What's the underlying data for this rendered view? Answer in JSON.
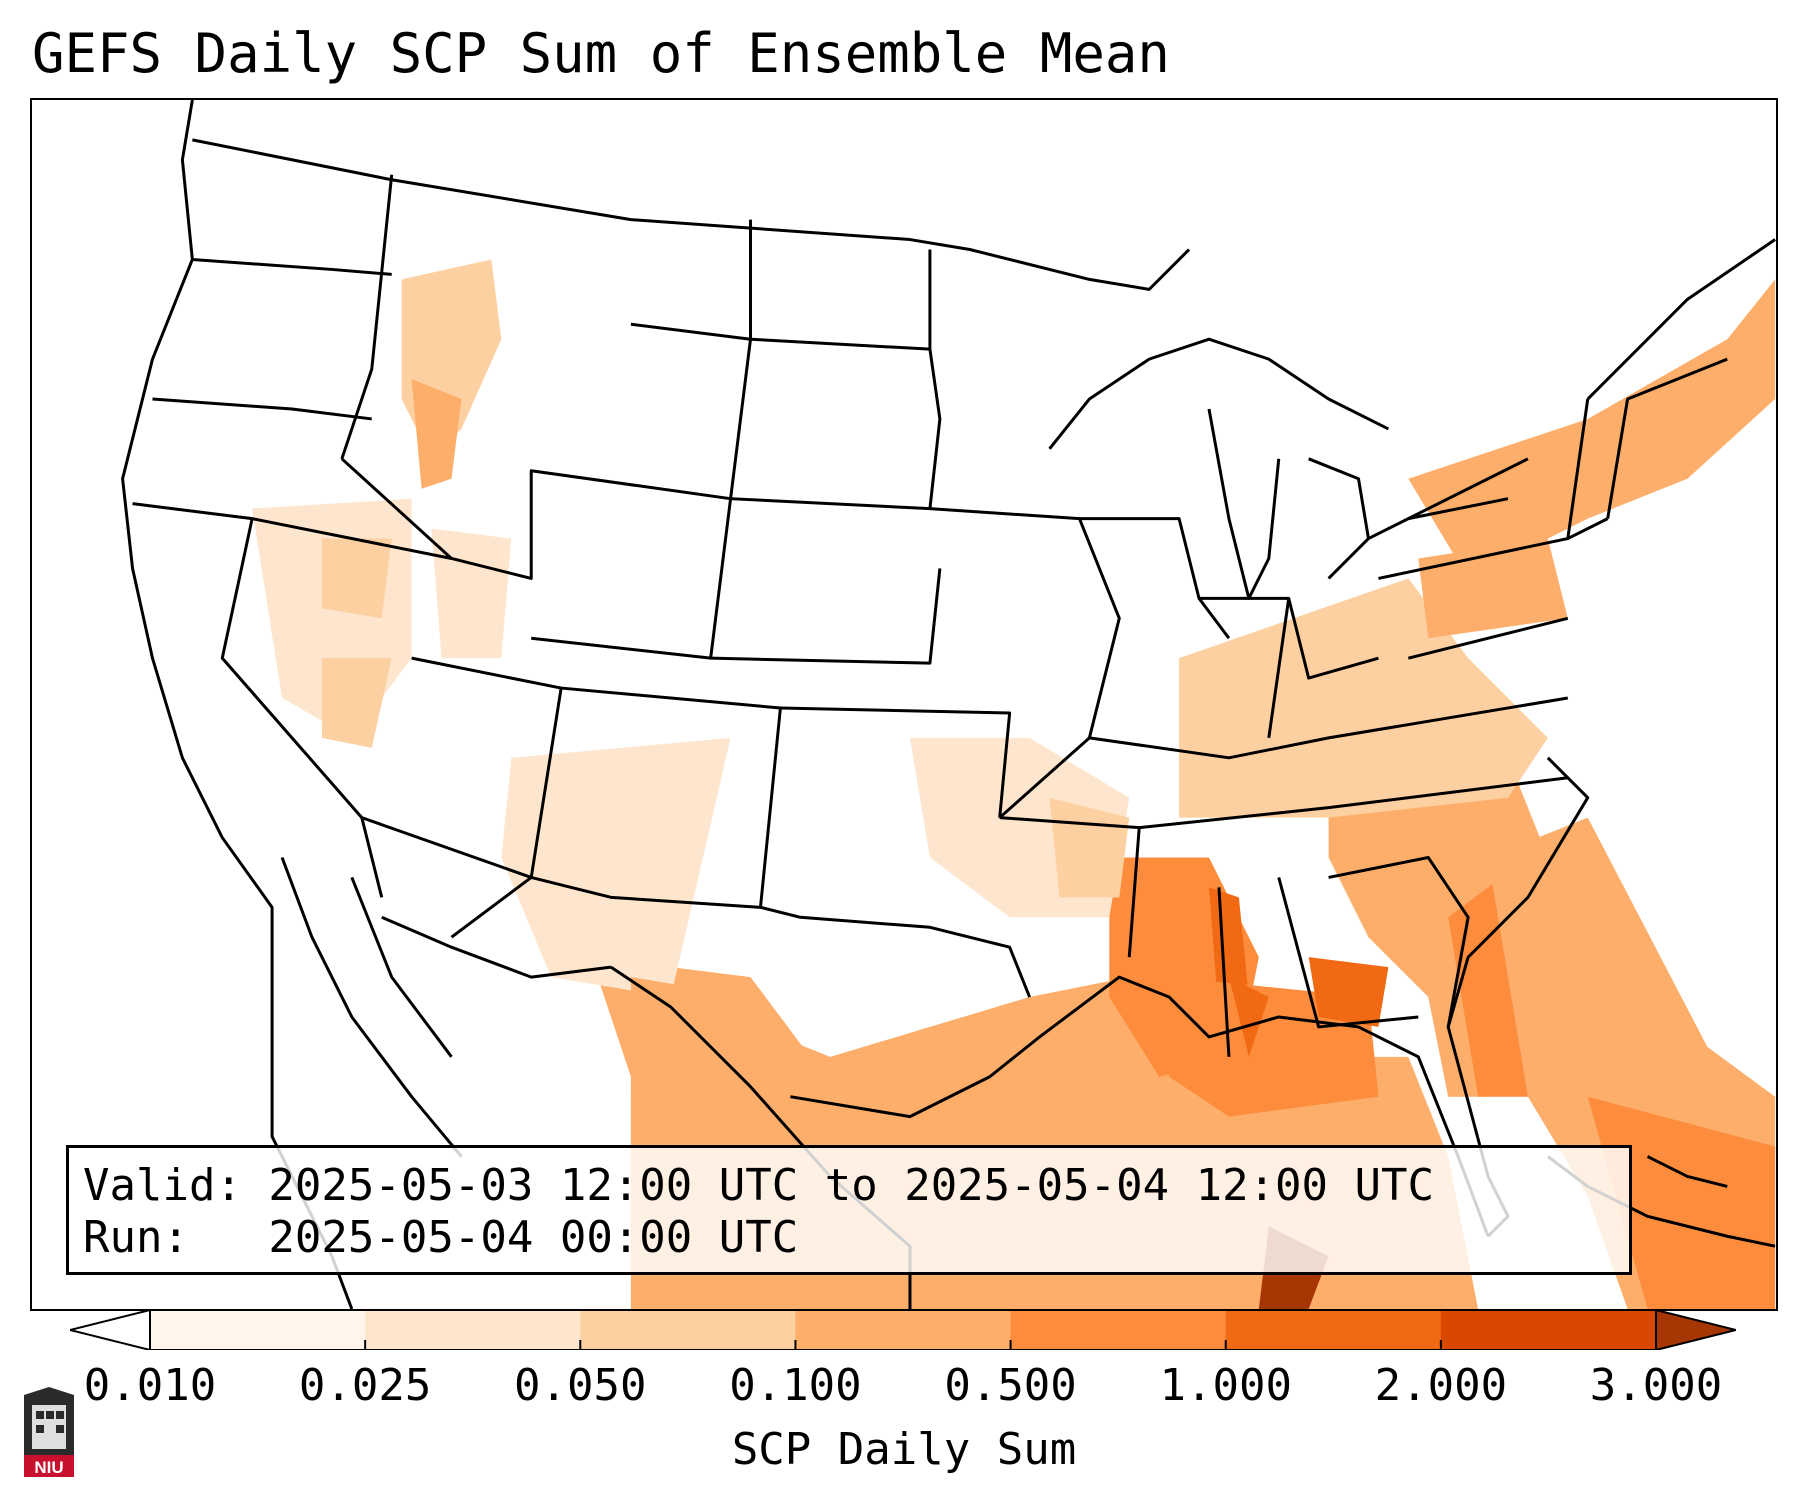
{
  "title": "GEFS Daily SCP Sum of Ensemble Mean",
  "valid_line": "Valid: 2025-05-03 12:00 UTC to 2025-05-04 12:00 UTC",
  "run_line": "Run:   2025-05-04 00:00 UTC",
  "colorbar": {
    "label": "SCP Daily Sum",
    "ticks": [
      "0.010",
      "0.025",
      "0.050",
      "0.100",
      "0.500",
      "1.000",
      "2.000",
      "3.000"
    ],
    "colors": [
      "#fff5eb",
      "#fee6ce",
      "#fdd0a2",
      "#fdae6b",
      "#fd8d3c",
      "#f16913",
      "#d94801",
      "#a63603"
    ],
    "extend": "both"
  },
  "logo": {
    "text": "NIU",
    "icon": "niu-logo-icon"
  },
  "map": {
    "region": "Contiguous United States, northern Mexico, Gulf of Mexico",
    "field": "SCP Daily Sum (ensemble mean)",
    "colormap": "Oranges"
  }
}
